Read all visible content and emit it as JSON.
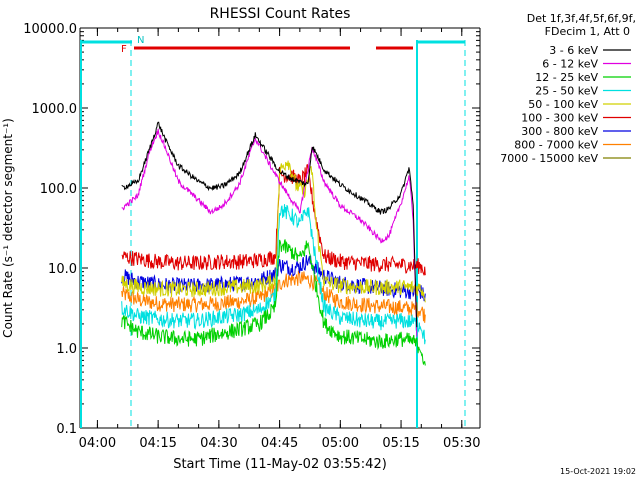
{
  "chart_data": {
    "type": "line",
    "title": "RHESSI Count Rates",
    "xlabel": "Start Time (11-May-02 03:55:42)",
    "ylabel": "Count Rate (s⁻¹ detector segment⁻¹)",
    "y_scale": "log",
    "ylim": [
      0.1,
      10000
    ],
    "y_ticks": [
      "0.1",
      "1.0",
      "10.0",
      "100.0",
      "1000.0",
      "10000.0"
    ],
    "x_ticks": [
      "04:00",
      "04:15",
      "04:30",
      "04:45",
      "05:00",
      "05:15",
      "05:30"
    ],
    "legend_header": [
      "Det 1f,3f,4f,5f,6f,9f,",
      "FDecim 1, Att 0"
    ],
    "timestamp": "15-Oct-2021 19:02",
    "flags": {
      "F": "F",
      "N": "N"
    },
    "series": [
      {
        "name": "3 - 6 keV",
        "color": "#000000",
        "points": [
          [
            "04:06",
            100
          ],
          [
            "04:10",
            120
          ],
          [
            "04:13",
            320
          ],
          [
            "04:15",
            650
          ],
          [
            "04:17",
            380
          ],
          [
            "04:20",
            190
          ],
          [
            "04:25",
            120
          ],
          [
            "04:28",
            100
          ],
          [
            "04:31",
            105
          ],
          [
            "04:35",
            150
          ],
          [
            "04:39",
            460
          ],
          [
            "04:42",
            270
          ],
          [
            "04:45",
            160
          ],
          [
            "04:48",
            130
          ],
          [
            "04:52",
            110
          ],
          [
            "04:53",
            340
          ],
          [
            "04:56",
            170
          ],
          [
            "05:00",
            110
          ],
          [
            "05:05",
            75
          ],
          [
            "05:10",
            50
          ],
          [
            "05:12",
            55
          ],
          [
            "05:15",
            85
          ],
          [
            "05:17",
            180
          ],
          [
            "05:18",
            60
          ],
          [
            "05:19",
            1.2
          ]
        ]
      },
      {
        "name": "6 - 12 keV",
        "color": "#e000e0",
        "points": [
          [
            "04:06",
            55
          ],
          [
            "04:10",
            80
          ],
          [
            "04:13",
            300
          ],
          [
            "04:15",
            520
          ],
          [
            "04:17",
            300
          ],
          [
            "04:20",
            120
          ],
          [
            "04:25",
            70
          ],
          [
            "04:28",
            50
          ],
          [
            "04:31",
            60
          ],
          [
            "04:35",
            110
          ],
          [
            "04:39",
            420
          ],
          [
            "04:42",
            220
          ],
          [
            "04:45",
            120
          ],
          [
            "04:48",
            70
          ],
          [
            "04:50",
            50
          ],
          [
            "04:53",
            320
          ],
          [
            "04:56",
            120
          ],
          [
            "05:00",
            60
          ],
          [
            "05:05",
            40
          ],
          [
            "05:10",
            22
          ],
          [
            "05:12",
            25
          ],
          [
            "05:15",
            65
          ],
          [
            "05:17",
            140
          ],
          [
            "05:18",
            40
          ],
          [
            "05:19",
            1.0
          ]
        ]
      },
      {
        "name": "12 - 25 keV",
        "color": "#00d000",
        "points": [
          [
            "04:06",
            2.2
          ],
          [
            "04:10",
            1.6
          ],
          [
            "04:15",
            1.4
          ],
          [
            "04:20",
            1.3
          ],
          [
            "04:25",
            1.3
          ],
          [
            "04:30",
            1.5
          ],
          [
            "04:35",
            1.7
          ],
          [
            "04:40",
            2.0
          ],
          [
            "04:44",
            3.2
          ],
          [
            "04:45",
            20
          ],
          [
            "04:48",
            16
          ],
          [
            "04:50",
            13
          ],
          [
            "04:52",
            20
          ],
          [
            "04:54",
            6
          ],
          [
            "04:56",
            2.0
          ],
          [
            "05:00",
            1.4
          ],
          [
            "05:05",
            1.3
          ],
          [
            "05:10",
            1.2
          ],
          [
            "05:15",
            1.3
          ],
          [
            "05:18",
            1.2
          ],
          [
            "05:20",
            1.0
          ],
          [
            "05:21",
            0.5
          ]
        ]
      },
      {
        "name": "25 - 50 keV",
        "color": "#00e0e0",
        "points": [
          [
            "04:06",
            3.2
          ],
          [
            "04:10",
            2.5
          ],
          [
            "04:15",
            2.3
          ],
          [
            "04:20",
            2.2
          ],
          [
            "04:25",
            2.2
          ],
          [
            "04:30",
            2.4
          ],
          [
            "04:35",
            2.6
          ],
          [
            "04:40",
            3.0
          ],
          [
            "04:44",
            4.5
          ],
          [
            "04:45",
            55
          ],
          [
            "04:48",
            45
          ],
          [
            "04:50",
            35
          ],
          [
            "04:52",
            55
          ],
          [
            "04:54",
            12
          ],
          [
            "04:56",
            3.2
          ],
          [
            "05:00",
            2.4
          ],
          [
            "05:05",
            2.2
          ],
          [
            "05:10",
            2.1
          ],
          [
            "05:15",
            2.2
          ],
          [
            "05:18",
            2.1
          ],
          [
            "05:20",
            1.9
          ],
          [
            "05:21",
            1.2
          ]
        ]
      },
      {
        "name": "50 - 100 keV",
        "color": "#d0d000",
        "points": [
          [
            "04:06",
            6.5
          ],
          [
            "04:10",
            5.8
          ],
          [
            "04:15",
            5.5
          ],
          [
            "04:20",
            5.4
          ],
          [
            "04:25",
            5.4
          ],
          [
            "04:30",
            5.6
          ],
          [
            "04:35",
            5.8
          ],
          [
            "04:40",
            6.0
          ],
          [
            "04:44",
            7.0
          ],
          [
            "04:45",
            160
          ],
          [
            "04:47",
            230
          ],
          [
            "04:49",
            110
          ],
          [
            "04:51",
            90
          ],
          [
            "04:53",
            170
          ],
          [
            "04:54",
            35
          ],
          [
            "04:56",
            6.8
          ],
          [
            "05:00",
            6.0
          ],
          [
            "05:05",
            5.8
          ],
          [
            "05:10",
            5.7
          ],
          [
            "05:15",
            5.8
          ],
          [
            "05:20",
            5.6
          ],
          [
            "05:21",
            4.5
          ]
        ]
      },
      {
        "name": "100 - 300 keV",
        "color": "#e00000",
        "points": [
          [
            "04:06",
            14
          ],
          [
            "04:10",
            13
          ],
          [
            "04:15",
            12
          ],
          [
            "04:20",
            11.5
          ],
          [
            "04:25",
            11.5
          ],
          [
            "04:30",
            12
          ],
          [
            "04:35",
            12
          ],
          [
            "04:40",
            12.5
          ],
          [
            "04:44",
            14
          ],
          [
            "04:45",
            150
          ],
          [
            "04:48",
            140
          ],
          [
            "04:50",
            120
          ],
          [
            "04:52",
            160
          ],
          [
            "04:54",
            40
          ],
          [
            "04:56",
            14
          ],
          [
            "05:00",
            12
          ],
          [
            "05:05",
            11.5
          ],
          [
            "05:10",
            11
          ],
          [
            "05:15",
            11
          ],
          [
            "05:20",
            10.5
          ],
          [
            "05:21",
            9
          ]
        ]
      },
      {
        "name": "300 - 800 keV",
        "color": "#0000e0",
        "points": [
          [
            "04:06",
            8.0
          ],
          [
            "04:10",
            6.8
          ],
          [
            "04:15",
            6.2
          ],
          [
            "04:20",
            6.0
          ],
          [
            "04:25",
            6.0
          ],
          [
            "04:30",
            6.2
          ],
          [
            "04:35",
            6.4
          ],
          [
            "04:40",
            7.0
          ],
          [
            "04:44",
            8.5
          ],
          [
            "04:45",
            11
          ],
          [
            "04:48",
            10
          ],
          [
            "04:50",
            10.5
          ],
          [
            "04:52",
            12.5
          ],
          [
            "04:54",
            10
          ],
          [
            "04:56",
            8.0
          ],
          [
            "05:00",
            6.5
          ],
          [
            "05:05",
            6.0
          ],
          [
            "05:10",
            5.6
          ],
          [
            "05:15",
            5.2
          ],
          [
            "05:20",
            5.0
          ],
          [
            "05:21",
            4.2
          ]
        ]
      },
      {
        "name": "800 - 7000 keV",
        "color": "#ff8000",
        "points": [
          [
            "04:06",
            4.8
          ],
          [
            "04:10",
            4.0
          ],
          [
            "04:15",
            3.6
          ],
          [
            "04:20",
            3.5
          ],
          [
            "04:25",
            3.5
          ],
          [
            "04:30",
            3.6
          ],
          [
            "04:35",
            3.8
          ],
          [
            "04:40",
            4.2
          ],
          [
            "04:44",
            5.5
          ],
          [
            "04:46",
            7.0
          ],
          [
            "04:50",
            7.4
          ],
          [
            "04:52",
            7.2
          ],
          [
            "04:54",
            6.5
          ],
          [
            "04:56",
            4.8
          ],
          [
            "05:00",
            3.8
          ],
          [
            "05:05",
            3.5
          ],
          [
            "05:10",
            3.3
          ],
          [
            "05:15",
            3.2
          ],
          [
            "05:20",
            3.0
          ],
          [
            "05:21",
            2.5
          ]
        ]
      },
      {
        "name": "7000 - 15000 keV",
        "color": "#808000",
        "points": []
      }
    ]
  }
}
